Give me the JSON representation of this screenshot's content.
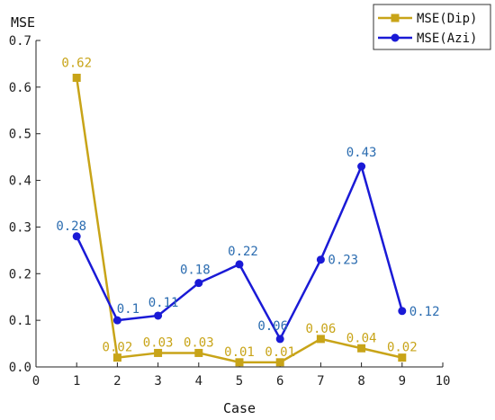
{
  "chart_data": {
    "type": "line",
    "xlabel": "Case",
    "ylabel": "MSE",
    "xlim": [
      0,
      10
    ],
    "ylim": [
      0,
      0.7
    ],
    "x_ticks": [
      0,
      1,
      2,
      3,
      4,
      5,
      6,
      7,
      8,
      9,
      10
    ],
    "y_ticks": [
      0.0,
      0.1,
      0.2,
      0.3,
      0.4,
      0.5,
      0.6,
      0.7
    ],
    "y_tick_labels": [
      "0.0",
      "0.1",
      "0.2",
      "0.3",
      "0.4",
      "0.5",
      "0.6",
      "0.7"
    ],
    "grid": false,
    "legend_position": "top-right",
    "series": [
      {
        "name": "MSE(Dip)",
        "color": "#c8a418",
        "marker": "square",
        "x": [
          1,
          2,
          3,
          4,
          5,
          6,
          7,
          8,
          9
        ],
        "values": [
          0.62,
          0.02,
          0.03,
          0.03,
          0.01,
          0.01,
          0.06,
          0.04,
          0.02
        ],
        "data_labels": [
          "0.62",
          "0.02",
          "0.03",
          "0.03",
          "0.01",
          "0.01",
          "0.06",
          "0.04",
          "0.02"
        ]
      },
      {
        "name": "MSE(Azi)",
        "color": "#1a1ad6",
        "label_color": "#2b6cb0",
        "marker": "circle",
        "x": [
          1,
          2,
          3,
          4,
          5,
          6,
          7,
          8,
          9
        ],
        "values": [
          0.28,
          0.1,
          0.11,
          0.18,
          0.22,
          0.06,
          0.23,
          0.43,
          0.12
        ],
        "data_labels": [
          "0.28",
          "0.1",
          "0.11",
          "0.18",
          "0.22",
          "0.06",
          "0.23",
          "0.43",
          "0.12"
        ]
      }
    ]
  }
}
